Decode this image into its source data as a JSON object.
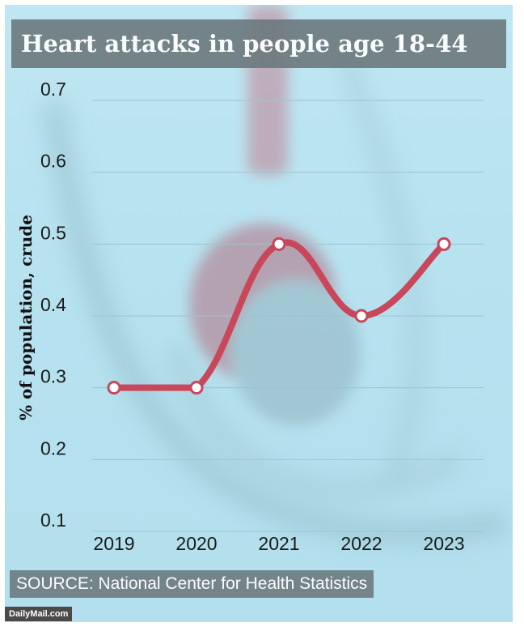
{
  "title": "Heart attacks in people age 18-44",
  "source": "SOURCE: National Center for Health Statistics",
  "brand": "DailyMail.com",
  "colors": {
    "line": "#c8475a",
    "marker_fill": "#ffffff",
    "title_bg": "#6d7b80",
    "background": "#b7e2f0"
  },
  "chart_data": {
    "type": "line",
    "title": "Heart attacks in people age 18-44",
    "xlabel": "",
    "ylabel": "% of population, crude",
    "categories": [
      "2019",
      "2020",
      "2021",
      "2022",
      "2023"
    ],
    "series": [
      {
        "values": [
          0.3,
          0.3,
          0.5,
          0.4,
          0.5
        ]
      }
    ],
    "yticks": [
      "0.1",
      "0.2",
      "0.3",
      "0.4",
      "0.5",
      "0.6",
      "0.7"
    ],
    "ylim": [
      0.1,
      0.7
    ],
    "grid": true,
    "smooth": true
  }
}
